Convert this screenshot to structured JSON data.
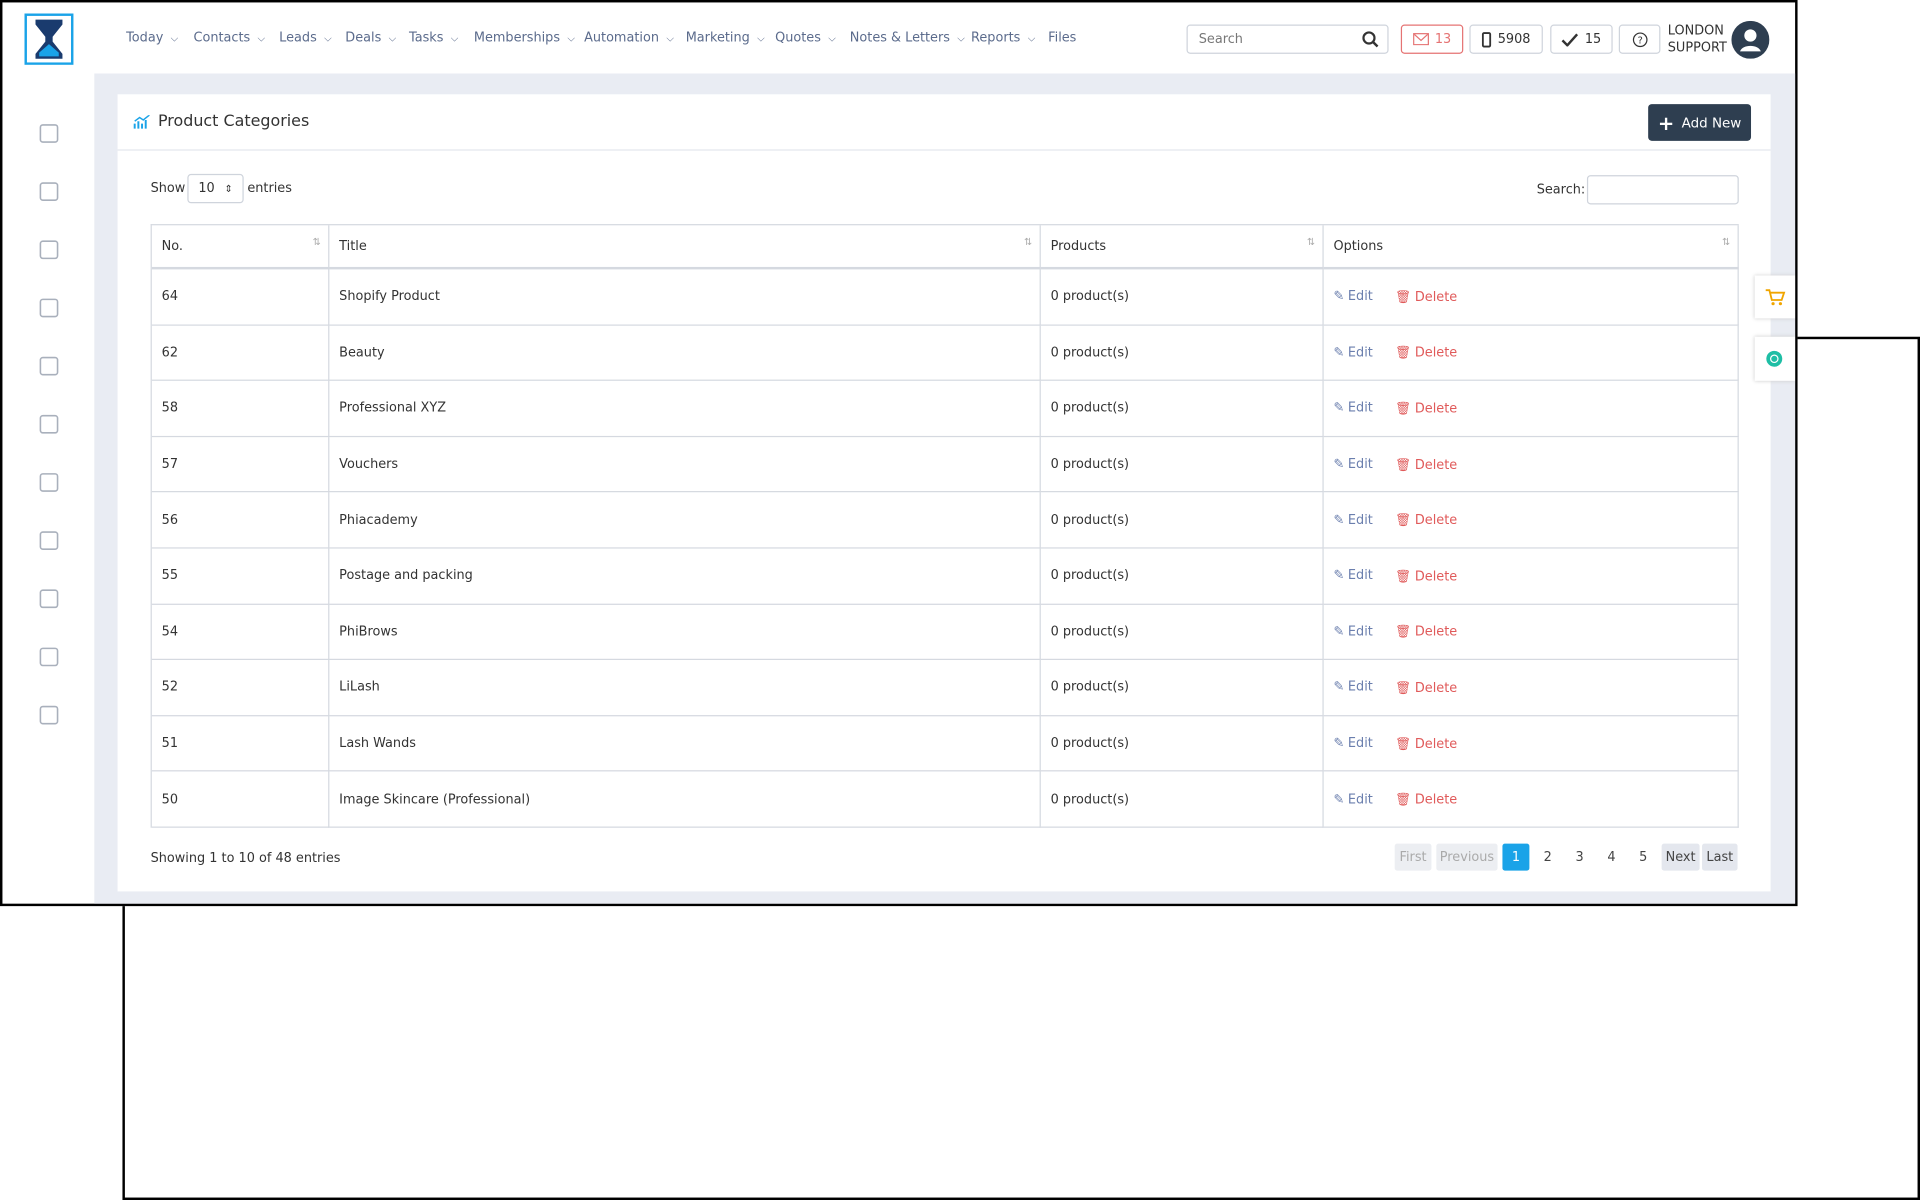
{
  "nav": {
    "menu": [
      "Today",
      "Contacts",
      "Leads",
      "Deals",
      "Tasks",
      "Memberships",
      "Automation",
      "Marketing",
      "Quotes",
      "Notes & Letters",
      "Reports",
      "Files"
    ],
    "search_placeholder": "Search",
    "badges": {
      "mail": 13,
      "phone": 5908,
      "tasks": 15
    },
    "user": [
      "LONDON",
      "SUPPORT"
    ]
  },
  "page": {
    "title": "Product Categories",
    "add_button": "Add New",
    "show_label": "Show",
    "page_size": "10",
    "entries_label": "entries",
    "search_label": "Search:"
  },
  "table": {
    "headers": [
      "No.",
      "Title",
      "Products",
      "Options"
    ],
    "actions": [
      "Edit",
      "Delete"
    ],
    "rows": [
      [
        64,
        "Shopify Product",
        "0 product(s)"
      ],
      [
        62,
        "Beauty",
        "0 product(s)"
      ],
      [
        58,
        "Professional XYZ",
        "0 product(s)"
      ],
      [
        57,
        "Vouchers",
        "0 product(s)"
      ],
      [
        56,
        "Phiacademy",
        "0 product(s)"
      ],
      [
        55,
        "Postage and packing",
        "0 product(s)"
      ],
      [
        54,
        "PhiBrows",
        "0 product(s)"
      ],
      [
        52,
        "LiLash",
        "0 product(s)"
      ],
      [
        51,
        "Lash Wands",
        "0 product(s)"
      ],
      [
        50,
        "Image Skincare (Professional)",
        "0 product(s)"
      ]
    ]
  },
  "footer": {
    "info": "Showing 1 to 10 of 48 entries",
    "pagination": [
      "First",
      "Previous",
      "1",
      "2",
      "3",
      "4",
      "5",
      "Next",
      "Last"
    ]
  }
}
